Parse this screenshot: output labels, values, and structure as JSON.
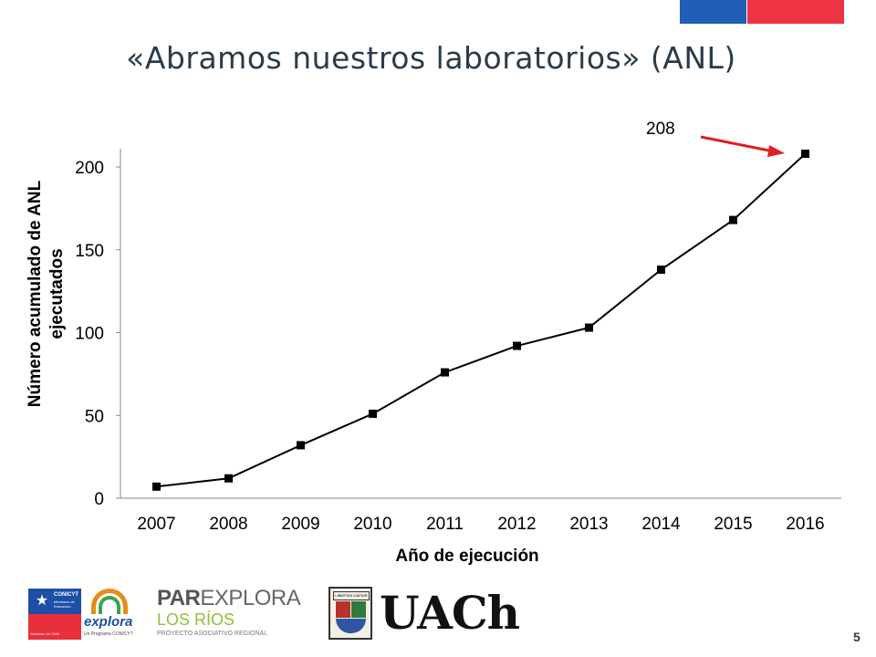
{
  "slide": {
    "title": "«Abramos nuestros laboratorios» (ANL)",
    "page_number": "5"
  },
  "colors": {
    "flag_blue": "#1f5fb5",
    "flag_red": "#ee3344",
    "series": "#000000",
    "arrow": "#e02020"
  },
  "chart_data": {
    "type": "line",
    "x": [
      "2007",
      "2008",
      "2009",
      "2010",
      "2011",
      "2012",
      "2013",
      "2014",
      "2015",
      "2016"
    ],
    "series": [
      {
        "values": [
          7,
          12,
          32,
          51,
          76,
          92,
          103,
          138,
          168,
          208
        ]
      }
    ],
    "xlabel": "Año de ejecución",
    "ylabel_lines": [
      "Número acumulado de ANL",
      "ejecutados"
    ],
    "ylim": [
      0,
      200
    ],
    "yticks": [
      0,
      50,
      100,
      150,
      200
    ],
    "grid": false,
    "annotation": {
      "text": "208",
      "points_to": "2016"
    }
  },
  "logos": {
    "conicyt": {
      "name": "CONICYT",
      "sub": "Ministerio de Educación",
      "footer": "Gobierno de Chile"
    },
    "explora": {
      "name": "explora",
      "sub": "Un Programa CONICYT"
    },
    "parexplora": {
      "line1_a": "PAR",
      "line1_b": "EXPLORA",
      "line2": "LOS RÍOS",
      "line3": "PROYECTO ASOCIATIVO REGIONAL"
    },
    "uach": {
      "text": "UACh",
      "seal_text": "LIBERTAS CAPIUR"
    }
  }
}
